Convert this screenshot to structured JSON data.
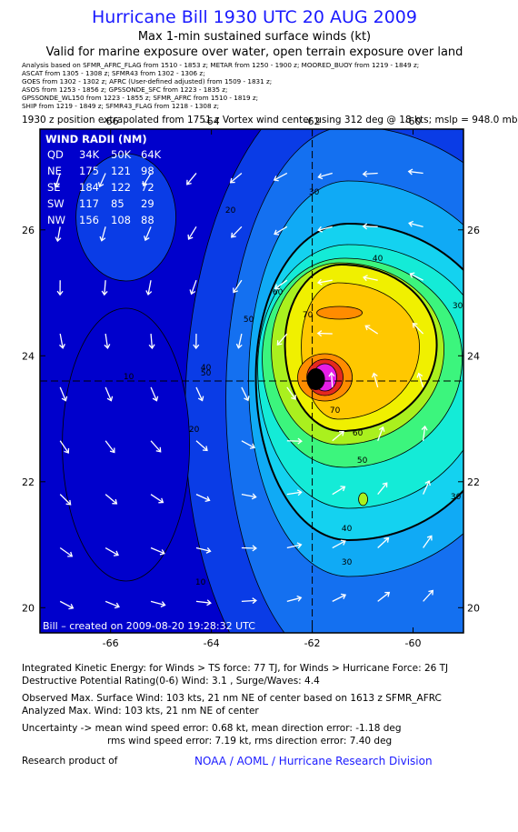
{
  "header": {
    "title": "Hurricane Bill 1930 UTC 20 AUG 2009",
    "subtitle": "Max 1-min sustained surface winds (kt)",
    "validity": "Valid for marine exposure over water, open terrain exposure over land",
    "analysis_lines": [
      "Analysis based on  SFMR_AFRC_FLAG from 1510 - 1853 z;   METAR from 1250 - 1900 z;   MOORED_BUOY from 1219 - 1849 z;",
      "ASCAT from 1305 - 1308 z;  SFMR43 from 1302 - 1306 z;",
      "GOES from 1302 - 1302 z;  AFRC (User-defined adjusted) from 1509 - 1831 z;",
      "ASOS from 1253 - 1856 z;  GPSSONDE_SFC from 1223 - 1835 z;",
      "GPSSONDE_WL150 from 1223 - 1855 z;  SFMR_AFRC from 1510 - 1819 z;",
      "SHIP from 1219 - 1849 z;  SFMR43_FLAG from 1218 - 1308 z;"
    ],
    "extrapolation": "1930 z position extrapolated from 1751 z Vortex wind center using 312 deg @ 18 kts; mslp = 948.0 mb"
  },
  "chart_data": {
    "type": "heatmap",
    "x_ticks": [
      "-66",
      "-64",
      "-62",
      "-60"
    ],
    "y_ticks": [
      "26",
      "24",
      "22",
      "20"
    ],
    "xlim": [
      -67.4,
      -59.0
    ],
    "ylim": [
      19.6,
      27.6
    ],
    "center": {
      "lon": -62.0,
      "lat": 23.6
    },
    "max_wind": {
      "value": 103,
      "lon": -61.7,
      "lat": 23.85
    },
    "contour_levels": [
      10,
      20,
      30,
      34,
      40,
      50,
      60,
      64,
      70
    ],
    "contour_labels": [
      "10",
      "20",
      "30",
      "40",
      "50",
      "60",
      "70"
    ],
    "colors": {
      "0": "#0000cc",
      "10": "#0a3ce6",
      "20": "#1470f0",
      "30": "#10aaf5",
      "34": "#14d2f0",
      "40": "#14ebd7",
      "50": "#3cf57d",
      "60": "#aaf01e",
      "64": "#f0f000",
      "70": "#ffc800",
      "80": "#ff8c00",
      "90": "#e6281e",
      "100": "#e61ee6",
      "110": "#000000"
    },
    "wind_radii": {
      "title": "WIND RADII (NM)",
      "columns": [
        "QD",
        "34K",
        "50K",
        "64K"
      ],
      "rows": [
        [
          "NE",
          "175",
          "121",
          "98"
        ],
        [
          "SE",
          "184",
          "122",
          "72"
        ],
        [
          "SW",
          "117",
          "85",
          "29"
        ],
        [
          "NW",
          "156",
          "108",
          "88"
        ]
      ]
    },
    "credit": "Bill – created on 2009-08-20 19:28:32 UTC"
  },
  "footer": {
    "ike": "Integrated Kinetic Energy:  for Winds > TS force: 77 TJ,  for Winds > Hurricane Force: 26 TJ",
    "dpr": "Destructive Potential Rating(0-6)   Wind: 3.1 , Surge/Waves: 4.4",
    "observed": "Observed Max. Surface Wind: 103 kts, 21 nm NE of center based on 1613 z SFMR_AFRC",
    "analyzed": "Analyzed Max. Wind: 103 kts, 21 nm NE of center",
    "uncert1": "Uncertainty -> mean wind speed error: 0.68 kt,   mean direction error:  -1.18 deg",
    "uncert2": "rms wind speed error: 7.19 kt,   rms direction error: 7.40 deg",
    "research": "Research product of",
    "org": "NOAA / AOML / Hurricane Research Division"
  }
}
